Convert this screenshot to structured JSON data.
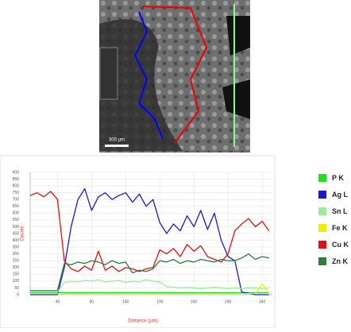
{
  "micrograph": {
    "scale_bar": "300 µm"
  },
  "chart_data": {
    "type": "line",
    "x_label": "Distance (µm)",
    "y_label": "Counts",
    "x": [
      0,
      10,
      20,
      30,
      40,
      50,
      60,
      70,
      80,
      90,
      100,
      110,
      120,
      130,
      140,
      150,
      160,
      170,
      180,
      190,
      200,
      210,
      220,
      230,
      240,
      250,
      260,
      270,
      280,
      290,
      300,
      310,
      320,
      330,
      340,
      350
    ],
    "xlim": [
      0,
      355
    ],
    "xticks": [
      40,
      90,
      140,
      190,
      240,
      290,
      340
    ],
    "ylim": [
      0,
      900
    ],
    "yticks": [
      0,
      50,
      100,
      150,
      200,
      250,
      300,
      350,
      400,
      450,
      500,
      550,
      600,
      650,
      700,
      750,
      800,
      850,
      900
    ],
    "grid": true,
    "series": [
      {
        "name": "P K",
        "color": "#22dd22",
        "values": [
          15,
          15,
          15,
          15,
          15,
          15,
          15,
          15,
          15,
          15,
          15,
          15,
          15,
          15,
          15,
          15,
          15,
          15,
          15,
          15,
          15,
          15,
          15,
          15,
          15,
          15,
          15,
          15,
          15,
          15,
          15,
          15,
          15,
          15,
          15,
          15
        ]
      },
      {
        "name": "Ag L",
        "color": "#1a1acc",
        "values": [
          0,
          0,
          0,
          0,
          0,
          200,
          500,
          700,
          780,
          620,
          720,
          750,
          700,
          730,
          750,
          680,
          740,
          650,
          700,
          530,
          450,
          520,
          470,
          580,
          500,
          620,
          480,
          600,
          400,
          280,
          250,
          20,
          10,
          0,
          0,
          0
        ]
      },
      {
        "name": "Sn L",
        "color": "#99ee99",
        "values": [
          20,
          20,
          20,
          20,
          20,
          90,
          100,
          95,
          105,
          100,
          110,
          95,
          100,
          105,
          90,
          100,
          95,
          110,
          100,
          95,
          60,
          55,
          50,
          55,
          50,
          45,
          50,
          55,
          50,
          45,
          50,
          45,
          50,
          50,
          45,
          50
        ]
      },
      {
        "name": "Fe K",
        "color": "#eeee00",
        "values": [
          8,
          8,
          8,
          8,
          8,
          8,
          8,
          8,
          8,
          8,
          8,
          8,
          8,
          8,
          8,
          8,
          8,
          8,
          8,
          8,
          8,
          8,
          8,
          8,
          8,
          8,
          8,
          8,
          8,
          8,
          8,
          8,
          8,
          8,
          80,
          8
        ]
      },
      {
        "name": "Cu K",
        "color": "#e01010",
        "values": [
          730,
          750,
          720,
          760,
          700,
          250,
          190,
          170,
          210,
          180,
          320,
          180,
          210,
          170,
          200,
          190,
          170,
          190,
          200,
          330,
          300,
          340,
          280,
          370,
          320,
          360,
          280,
          260,
          240,
          300,
          470,
          520,
          560,
          500,
          540,
          470
        ]
      },
      {
        "name": "Zn K",
        "color": "#2e7d3e",
        "values": [
          30,
          30,
          30,
          30,
          30,
          230,
          220,
          240,
          230,
          250,
          240,
          220,
          250,
          230,
          240,
          160,
          180,
          170,
          190,
          250,
          240,
          260,
          230,
          250,
          240,
          260,
          250,
          240,
          260,
          250,
          250,
          270,
          300,
          260,
          280,
          270
        ]
      }
    ]
  }
}
